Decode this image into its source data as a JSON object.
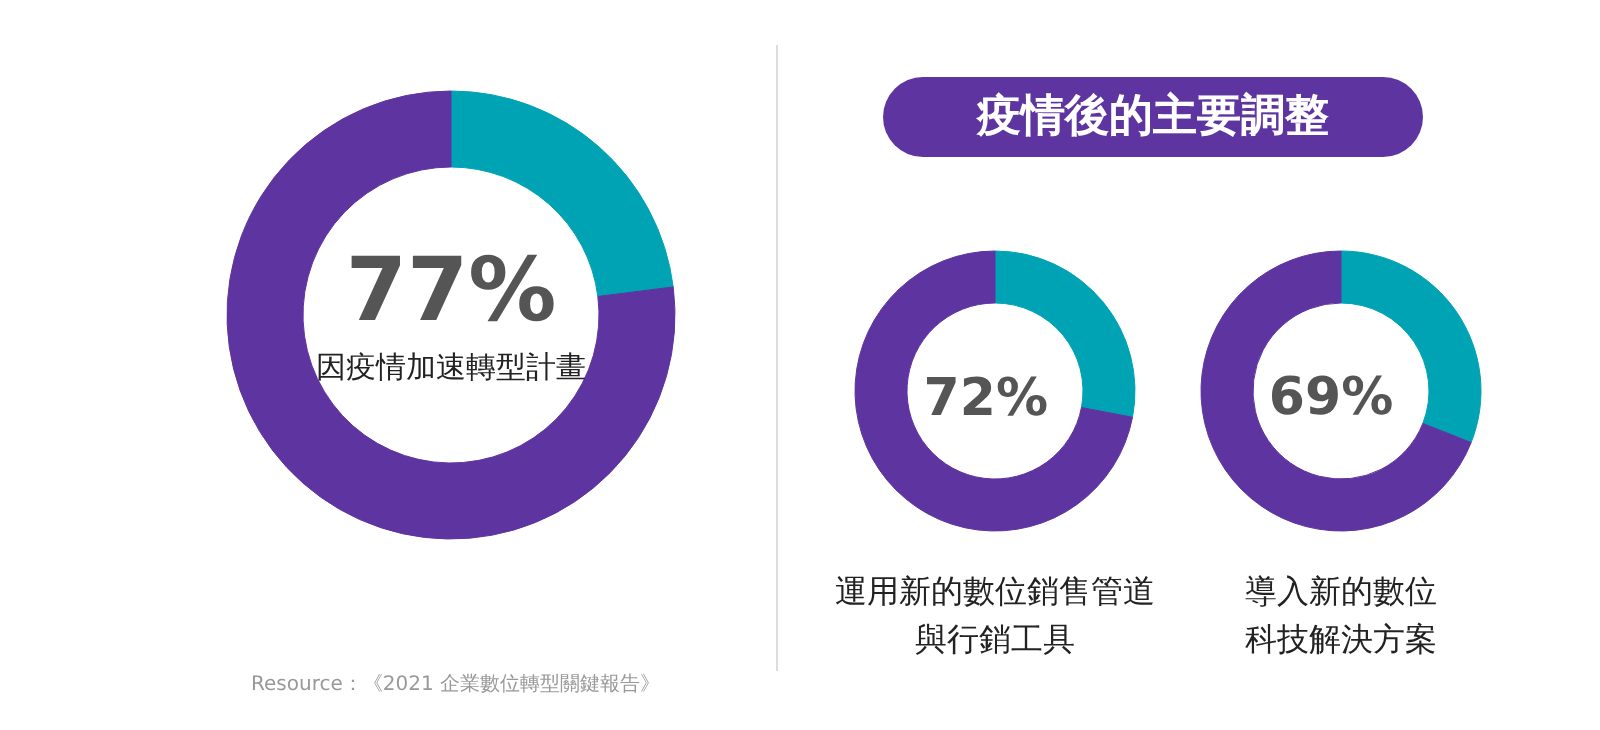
{
  "chart_data": [
    {
      "type": "donut",
      "categories": [
        null,
        "因疫情加速轉型計畫"
      ],
      "values": [
        23,
        77
      ],
      "colors": [
        "#00a3b4",
        "#5e35a0"
      ],
      "value_labels": [
        null,
        "77%"
      ],
      "annotations": [
        "Resource：《2021 企業數位轉型關鍵報告》"
      ]
    },
    {
      "type": "donut",
      "title": "疫情後的主要調整",
      "categories": [
        null,
        "運用新的數位銷售管道與行銷工具"
      ],
      "values": [
        28,
        72
      ],
      "colors": [
        "#00a3b4",
        "#5e35a0"
      ],
      "value_labels": [
        null,
        "72%"
      ]
    },
    {
      "type": "donut",
      "categories": [
        null,
        "導入新的數位科技解決方案"
      ],
      "values": [
        31,
        69
      ],
      "colors": [
        "#00a3b4",
        "#5e35a0"
      ],
      "value_labels": [
        null,
        "69%"
      ]
    }
  ]
}
